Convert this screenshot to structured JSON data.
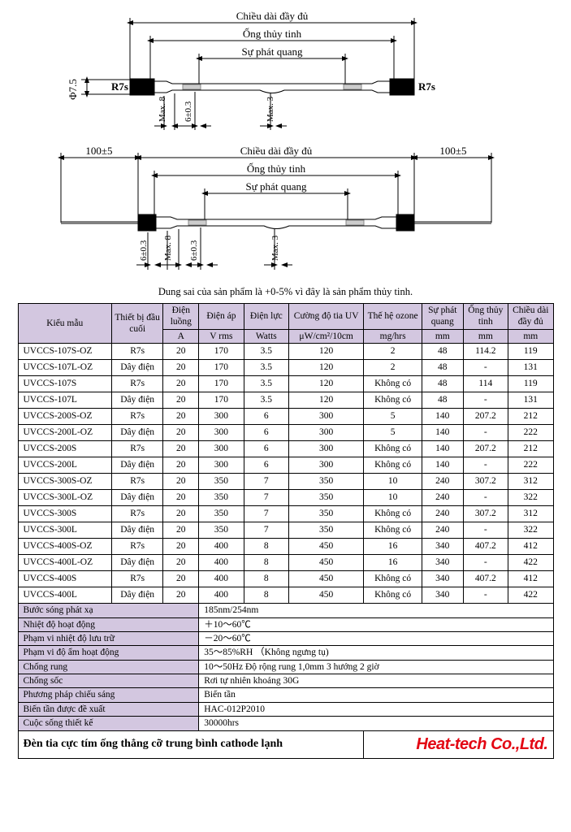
{
  "diagram": {
    "full_len": "Chiều dài đầy đủ",
    "glass_tube": "Ống thủy tinh",
    "luminescence": "Sự phát quang",
    "r7s": "R7s",
    "phi": "Φ7.5",
    "max8": "Max. 8",
    "six03": "6±0.3",
    "max3": "Max. 3",
    "hundred5": "100±5",
    "stroke": "#000000",
    "fill": "#ffffff"
  },
  "caption": "Dung sai của sản phẩm là +0-5% vì đây là sản phẩm thủy tinh.",
  "headers": {
    "model": "Kiểu mẫu",
    "terminal": "Thiết bị đầu cuối",
    "current": "Điện luồng",
    "voltage": "Điện áp",
    "power": "Điện lực",
    "uv": "Cường độ tia UV",
    "ozone": "Thế hệ ozone",
    "lum": "Sự phát quang",
    "glass": "Ống thủy tinh",
    "full": "Chiều dài đầy đủ",
    "A": "A",
    "Vrms": "V rms",
    "Watts": "Watts",
    "uw": "μW/cm²/10cm",
    "mghrs": "mg/hrs",
    "mm": "mm"
  },
  "rows": [
    {
      "m": "UVCCS-107S-OZ",
      "t": "R7s",
      "a": "20",
      "v": "170",
      "w": "3.5",
      "uv": "120",
      "oz": "2",
      "lum": "48",
      "g": "114.2",
      "f": "119"
    },
    {
      "m": "UVCCS-107L-OZ",
      "t": "Dây điện",
      "a": "20",
      "v": "170",
      "w": "3.5",
      "uv": "120",
      "oz": "2",
      "lum": "48",
      "g": "-",
      "f": "131"
    },
    {
      "m": "UVCCS-107S",
      "t": "R7s",
      "a": "20",
      "v": "170",
      "w": "3.5",
      "uv": "120",
      "oz": "Không có",
      "lum": "48",
      "g": "114",
      "f": "119"
    },
    {
      "m": "UVCCS-107L",
      "t": "Dây điện",
      "a": "20",
      "v": "170",
      "w": "3.5",
      "uv": "120",
      "oz": "Không có",
      "lum": "48",
      "g": "-",
      "f": "131"
    },
    {
      "m": "UVCCS-200S-OZ",
      "t": "R7s",
      "a": "20",
      "v": "300",
      "w": "6",
      "uv": "300",
      "oz": "5",
      "lum": "140",
      "g": "207.2",
      "f": "212"
    },
    {
      "m": "UVCCS-200L-OZ",
      "t": "Dây điện",
      "a": "20",
      "v": "300",
      "w": "6",
      "uv": "300",
      "oz": "5",
      "lum": "140",
      "g": "-",
      "f": "222"
    },
    {
      "m": "UVCCS-200S",
      "t": "R7s",
      "a": "20",
      "v": "300",
      "w": "6",
      "uv": "300",
      "oz": "Không có",
      "lum": "140",
      "g": "207.2",
      "f": "212"
    },
    {
      "m": "UVCCS-200L",
      "t": "Dây điện",
      "a": "20",
      "v": "300",
      "w": "6",
      "uv": "300",
      "oz": "Không có",
      "lum": "140",
      "g": "-",
      "f": "222"
    },
    {
      "m": "UVCCS-300S-OZ",
      "t": "R7s",
      "a": "20",
      "v": "350",
      "w": "7",
      "uv": "350",
      "oz": "10",
      "lum": "240",
      "g": "307.2",
      "f": "312"
    },
    {
      "m": "UVCCS-300L-OZ",
      "t": "Dây điện",
      "a": "20",
      "v": "350",
      "w": "7",
      "uv": "350",
      "oz": "10",
      "lum": "240",
      "g": "-",
      "f": "322"
    },
    {
      "m": "UVCCS-300S",
      "t": "R7s",
      "a": "20",
      "v": "350",
      "w": "7",
      "uv": "350",
      "oz": "Không có",
      "lum": "240",
      "g": "307.2",
      "f": "312"
    },
    {
      "m": "UVCCS-300L",
      "t": "Dây điện",
      "a": "20",
      "v": "350",
      "w": "7",
      "uv": "350",
      "oz": "Không có",
      "lum": "240",
      "g": "-",
      "f": "322"
    },
    {
      "m": "UVCCS-400S-OZ",
      "t": "R7s",
      "a": "20",
      "v": "400",
      "w": "8",
      "uv": "450",
      "oz": "16",
      "lum": "340",
      "g": "407.2",
      "f": "412"
    },
    {
      "m": "UVCCS-400L-OZ",
      "t": "Dây điện",
      "a": "20",
      "v": "400",
      "w": "8",
      "uv": "450",
      "oz": "16",
      "lum": "340",
      "g": "-",
      "f": "422"
    },
    {
      "m": "UVCCS-400S",
      "t": "R7s",
      "a": "20",
      "v": "400",
      "w": "8",
      "uv": "450",
      "oz": "Không có",
      "lum": "340",
      "g": "407.2",
      "f": "412"
    },
    {
      "m": "UVCCS-400L",
      "t": "Dây điện",
      "a": "20",
      "v": "400",
      "w": "8",
      "uv": "450",
      "oz": "Không có",
      "lum": "340",
      "g": "-",
      "f": "422"
    }
  ],
  "specs": [
    {
      "label": "Bước sóng phát xạ",
      "value": "185nm/254nm"
    },
    {
      "label": "Nhiệt độ hoạt động",
      "value": "＋10～60℃"
    },
    {
      "label": "Phạm vi nhiệt độ lưu trữ",
      "value": "－20～60℃"
    },
    {
      "label": "Phạm vi độ ẩm hoạt động",
      "value": "35～85%RH （Không ngưng tụ)"
    },
    {
      "label": "Chống rung",
      "value": "10～50Hz Độ rộng rung 1,0mm 3 hướng 2 giờ"
    },
    {
      "label": "Chống sốc",
      "value": "Rơi tự nhiên khoảng 30G"
    },
    {
      "label": "Phương pháp chiếu sáng",
      "value": "Biến tần"
    },
    {
      "label": "Biến tần được đề xuất",
      "value": "HAC-012P2010"
    },
    {
      "label": "Cuộc sống thiết kế",
      "value": "30000hrs"
    }
  ],
  "footer": {
    "title": "Đèn tia cực tím ống thẳng cỡ trung bình cathode lạnh",
    "brand": "Heat-tech Co.,Ltd."
  },
  "style": {
    "header_bg": "#d3c7e0",
    "brand_color": "#e30613"
  }
}
